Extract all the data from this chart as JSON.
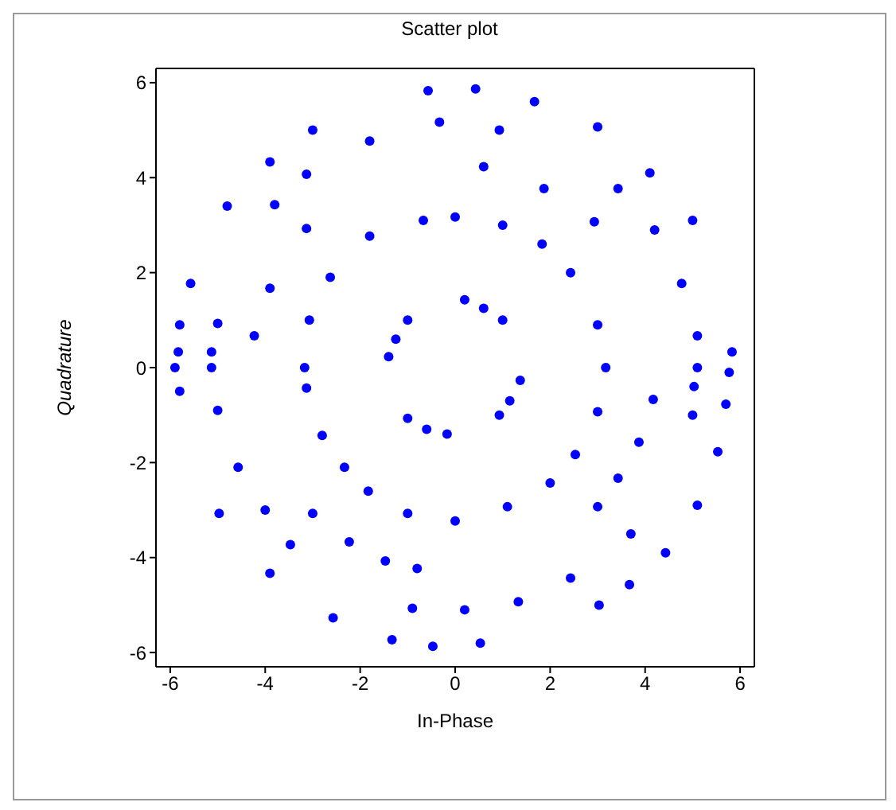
{
  "chart_data": {
    "type": "scatter",
    "title": "Scatter plot",
    "xlabel": "In-Phase",
    "ylabel": "Quadrature",
    "xlim": [
      -6.3,
      6.3
    ],
    "ylim": [
      -6.3,
      6.3
    ],
    "xticks": [
      -6,
      -4,
      -2,
      0,
      2,
      4,
      6
    ],
    "yticks": [
      -6,
      -4,
      -2,
      0,
      2,
      4,
      6
    ],
    "marker": "circle",
    "series": [
      {
        "color": "#0000ff",
        "x": [
          -0.57,
          0.43,
          1.67,
          3.0,
          4.1,
          5.0,
          -3.0,
          -3.9,
          -4.8,
          -5.57,
          -5.8,
          -5.9,
          -5.83,
          -5.8,
          -3.8,
          -3.13,
          -1.8,
          -0.33,
          0.93,
          0.6,
          1.87,
          2.93,
          3.43,
          4.2,
          4.77,
          5.1,
          5.1,
          5.03,
          5.0,
          5.83,
          5.77,
          5.7,
          5.53,
          5.1,
          4.43,
          3.67,
          3.03,
          -5.0,
          -5.13,
          -5.13,
          -5.0,
          -4.57,
          -4.0,
          -3.47,
          -4.23,
          -3.9,
          -3.13,
          -2.63,
          -1.8,
          -0.67,
          0,
          1.0,
          1.83,
          2.43,
          3.0,
          3.17,
          3.0,
          -3.07,
          -3.17,
          -3.13,
          -2.8,
          -2.33,
          -1.83,
          -1.0,
          0,
          1.1,
          2.0,
          2.53,
          0.2,
          0.6,
          1.0,
          -1.0,
          -1.25,
          -1.4,
          1.37,
          1.15,
          0.93,
          -1.0,
          -0.6,
          -0.17,
          4.17,
          3.87,
          3.43,
          3.0,
          -3.0,
          -2.23,
          -1.47,
          -0.8,
          -0.9,
          0.2,
          1.33,
          2.43,
          3.7,
          -4.97,
          -3.9,
          -2.57,
          -1.33,
          -0.47,
          0.53
        ],
        "values": [
          5.83,
          5.87,
          5.6,
          5.07,
          4.1,
          3.1,
          5.0,
          4.33,
          3.4,
          1.77,
          0.9,
          0,
          0.33,
          -0.5,
          3.43,
          4.07,
          4.77,
          5.17,
          5.0,
          4.23,
          3.77,
          3.07,
          3.77,
          2.9,
          1.77,
          0.67,
          0,
          -0.4,
          -1.0,
          0.33,
          -0.1,
          -0.77,
          -1.77,
          -2.9,
          -3.9,
          -4.57,
          -5.0,
          0.93,
          0,
          0.33,
          -0.9,
          -2.1,
          -3.0,
          -3.73,
          0.67,
          1.67,
          2.93,
          1.9,
          2.77,
          3.1,
          3.17,
          3.0,
          2.6,
          2.0,
          0.9,
          0,
          -0.93,
          1.0,
          0,
          -0.43,
          -1.43,
          -2.1,
          -2.6,
          -3.07,
          -3.23,
          -2.93,
          -2.43,
          -1.83,
          1.43,
          1.25,
          1.0,
          1.0,
          0.6,
          0.23,
          -0.27,
          -0.7,
          -1.0,
          -1.07,
          -1.3,
          -1.4,
          -0.67,
          -1.57,
          -2.33,
          -2.93,
          -3.07,
          -3.67,
          -4.07,
          -4.23,
          -5.07,
          -5.1,
          -4.93,
          -4.43,
          -3.5,
          -3.07,
          -4.33,
          -5.27,
          -5.73,
          -5.87,
          -5.8
        ]
      }
    ]
  }
}
